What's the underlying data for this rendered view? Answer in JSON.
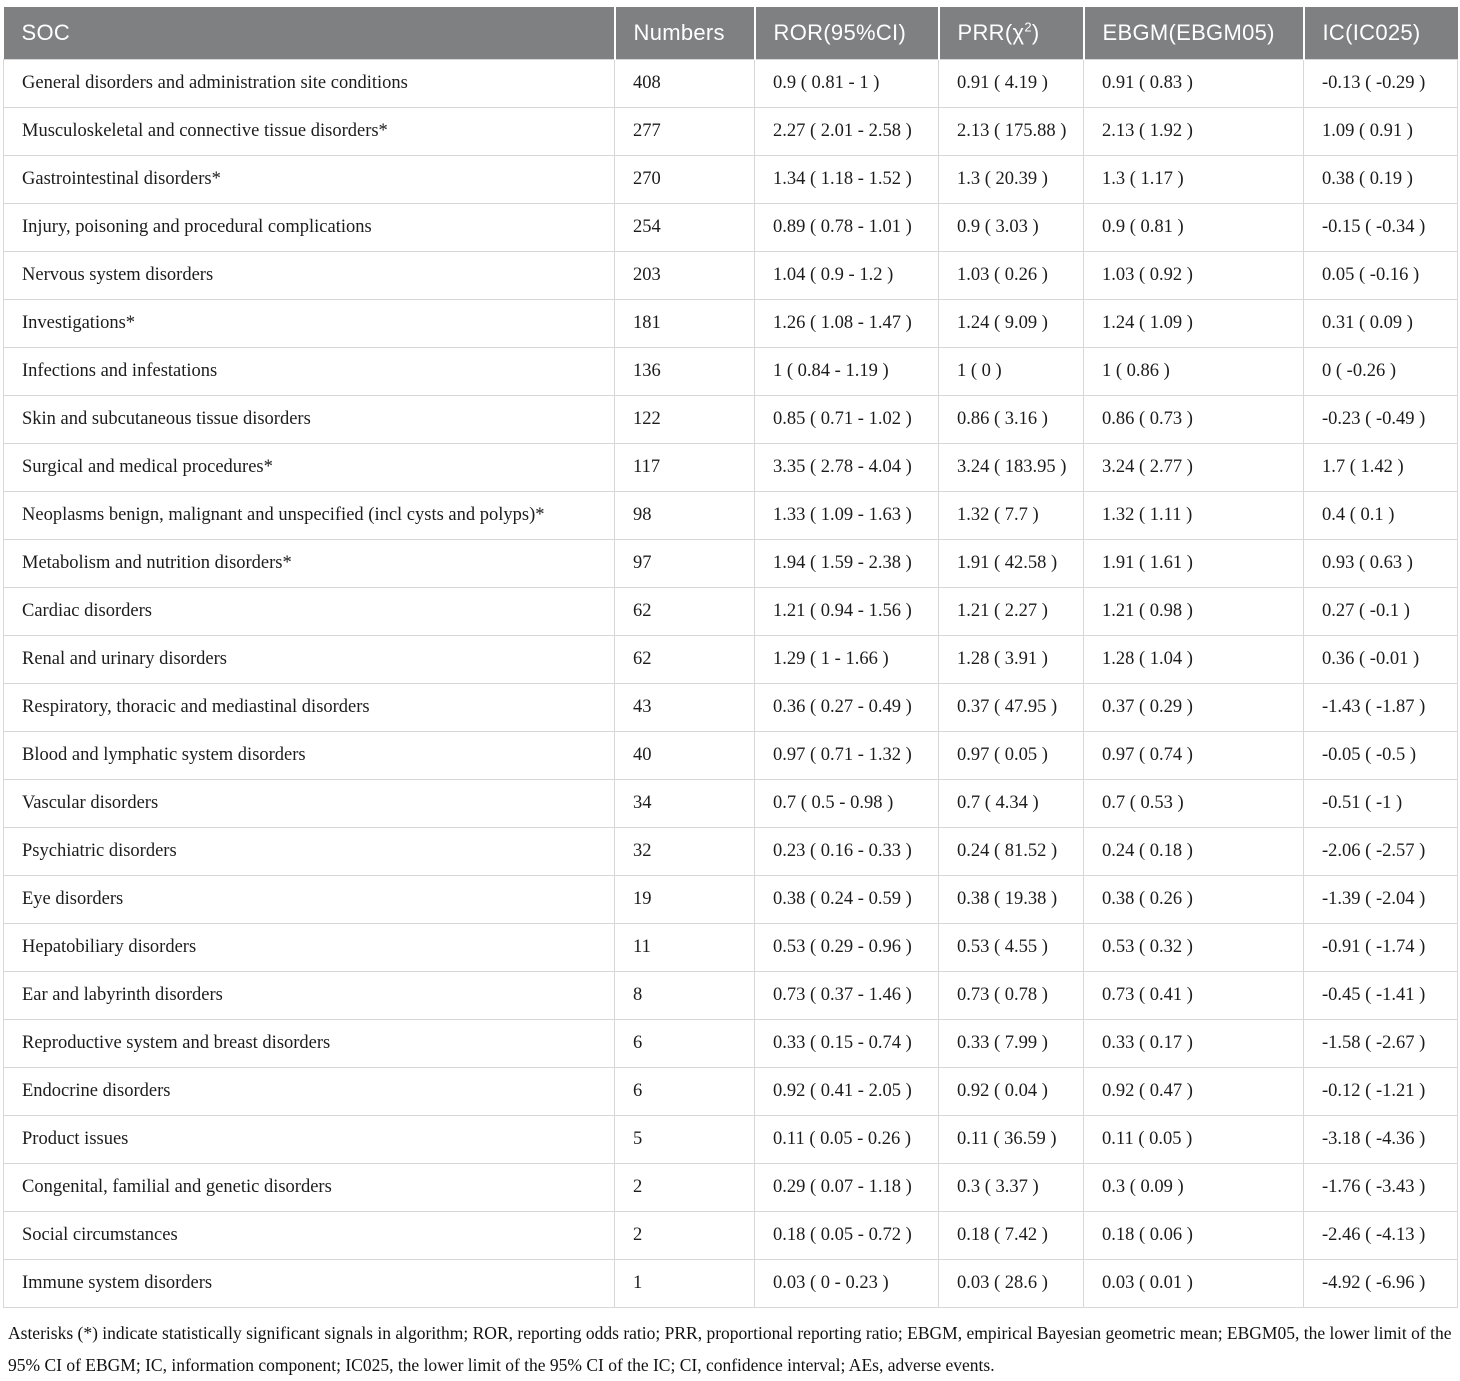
{
  "colors": {
    "header_bg": "#7e8081",
    "header_text": "#ffffff",
    "row_border": "#d7d7d7",
    "body_text": "#1c1c1c"
  },
  "table": {
    "columns": [
      {
        "key": "soc",
        "label": "SOC"
      },
      {
        "key": "numbers",
        "label": "Numbers"
      },
      {
        "key": "ror",
        "label": "ROR(95%CI)"
      },
      {
        "key": "prr",
        "label_pre": "PRR(χ",
        "label_sup": "2",
        "label_post": ")"
      },
      {
        "key": "ebgm",
        "label": "EBGM(EBGM05)"
      },
      {
        "key": "ic",
        "label": "IC(IC025)"
      }
    ],
    "rows": [
      {
        "soc": "General disorders and administration site conditions",
        "numbers": "408",
        "ror": "0.9 ( 0.81 - 1 )",
        "prr": "0.91 ( 4.19 )",
        "ebgm": "0.91 ( 0.83 )",
        "ic": "-0.13 ( -0.29 )"
      },
      {
        "soc": "Musculoskeletal and connective tissue disorders*",
        "numbers": "277",
        "ror": "2.27 ( 2.01 - 2.58 )",
        "prr": "2.13 ( 175.88 )",
        "ebgm": "2.13 ( 1.92 )",
        "ic": "1.09 ( 0.91 )"
      },
      {
        "soc": "Gastrointestinal disorders*",
        "numbers": "270",
        "ror": "1.34 ( 1.18 - 1.52 )",
        "prr": "1.3 ( 20.39 )",
        "ebgm": "1.3 ( 1.17 )",
        "ic": "0.38 ( 0.19 )"
      },
      {
        "soc": "Injury, poisoning and procedural complications",
        "numbers": "254",
        "ror": "0.89 ( 0.78 - 1.01 )",
        "prr": "0.9 ( 3.03 )",
        "ebgm": "0.9 ( 0.81 )",
        "ic": "-0.15 ( -0.34 )"
      },
      {
        "soc": "Nervous system disorders",
        "numbers": "203",
        "ror": "1.04 ( 0.9 - 1.2 )",
        "prr": "1.03 ( 0.26 )",
        "ebgm": "1.03 ( 0.92 )",
        "ic": "0.05 ( -0.16 )"
      },
      {
        "soc": "Investigations*",
        "numbers": "181",
        "ror": "1.26 ( 1.08 - 1.47 )",
        "prr": "1.24 ( 9.09 )",
        "ebgm": "1.24 ( 1.09 )",
        "ic": "0.31 ( 0.09 )"
      },
      {
        "soc": "Infections and infestations",
        "numbers": "136",
        "ror": "1 ( 0.84 - 1.19 )",
        "prr": "1 ( 0 )",
        "ebgm": "1 ( 0.86 )",
        "ic": "0 ( -0.26 )"
      },
      {
        "soc": "Skin and subcutaneous tissue disorders",
        "numbers": "122",
        "ror": "0.85 ( 0.71 - 1.02 )",
        "prr": "0.86 ( 3.16 )",
        "ebgm": "0.86 ( 0.73 )",
        "ic": "-0.23 ( -0.49 )"
      },
      {
        "soc": "Surgical and medical procedures*",
        "numbers": "117",
        "ror": "3.35 ( 2.78 - 4.04 )",
        "prr": "3.24 ( 183.95 )",
        "ebgm": "3.24 ( 2.77 )",
        "ic": "1.7 ( 1.42 )"
      },
      {
        "soc": "Neoplasms benign, malignant and unspecified (incl cysts and polyps)*",
        "numbers": "98",
        "ror": "1.33 ( 1.09 - 1.63 )",
        "prr": "1.32 ( 7.7 )",
        "ebgm": "1.32 ( 1.11 )",
        "ic": "0.4 ( 0.1 )"
      },
      {
        "soc": "Metabolism and nutrition disorders*",
        "numbers": "97",
        "ror": "1.94 ( 1.59 - 2.38 )",
        "prr": "1.91 ( 42.58 )",
        "ebgm": "1.91 ( 1.61 )",
        "ic": "0.93 ( 0.63 )"
      },
      {
        "soc": "Cardiac disorders",
        "numbers": "62",
        "ror": "1.21 ( 0.94 - 1.56 )",
        "prr": "1.21 ( 2.27 )",
        "ebgm": "1.21 ( 0.98 )",
        "ic": "0.27 ( -0.1 )"
      },
      {
        "soc": "Renal and urinary disorders",
        "numbers": "62",
        "ror": "1.29 ( 1 - 1.66 )",
        "prr": "1.28 ( 3.91 )",
        "ebgm": "1.28 ( 1.04 )",
        "ic": "0.36 ( -0.01 )"
      },
      {
        "soc": "Respiratory, thoracic and mediastinal disorders",
        "numbers": "43",
        "ror": "0.36 ( 0.27 - 0.49 )",
        "prr": "0.37 ( 47.95 )",
        "ebgm": "0.37 ( 0.29 )",
        "ic": "-1.43 ( -1.87 )"
      },
      {
        "soc": "Blood and lymphatic system disorders",
        "numbers": "40",
        "ror": "0.97 ( 0.71 - 1.32 )",
        "prr": "0.97 ( 0.05 )",
        "ebgm": "0.97 ( 0.74 )",
        "ic": "-0.05 ( -0.5 )"
      },
      {
        "soc": "Vascular disorders",
        "numbers": "34",
        "ror": "0.7 ( 0.5 - 0.98 )",
        "prr": "0.7 ( 4.34 )",
        "ebgm": "0.7 ( 0.53 )",
        "ic": "-0.51 ( -1 )"
      },
      {
        "soc": "Psychiatric disorders",
        "numbers": "32",
        "ror": "0.23 ( 0.16 - 0.33 )",
        "prr": "0.24 ( 81.52 )",
        "ebgm": "0.24 ( 0.18 )",
        "ic": "-2.06 ( -2.57 )"
      },
      {
        "soc": "Eye disorders",
        "numbers": "19",
        "ror": "0.38 ( 0.24 - 0.59 )",
        "prr": "0.38 ( 19.38 )",
        "ebgm": "0.38 ( 0.26 )",
        "ic": "-1.39 ( -2.04 )"
      },
      {
        "soc": "Hepatobiliary disorders",
        "numbers": "11",
        "ror": "0.53 ( 0.29 - 0.96 )",
        "prr": "0.53 ( 4.55 )",
        "ebgm": "0.53 ( 0.32 )",
        "ic": "-0.91 ( -1.74 )"
      },
      {
        "soc": "Ear and labyrinth disorders",
        "numbers": "8",
        "ror": "0.73 ( 0.37 - 1.46 )",
        "prr": "0.73 ( 0.78 )",
        "ebgm": "0.73 ( 0.41 )",
        "ic": "-0.45 ( -1.41 )"
      },
      {
        "soc": "Reproductive system and breast disorders",
        "numbers": "6",
        "ror": "0.33 ( 0.15 - 0.74 )",
        "prr": "0.33 ( 7.99 )",
        "ebgm": "0.33 ( 0.17 )",
        "ic": "-1.58 ( -2.67 )"
      },
      {
        "soc": "Endocrine disorders",
        "numbers": "6",
        "ror": "0.92 ( 0.41 - 2.05 )",
        "prr": "0.92 ( 0.04 )",
        "ebgm": "0.92 ( 0.47 )",
        "ic": "-0.12 ( -1.21 )"
      },
      {
        "soc": "Product issues",
        "numbers": "5",
        "ror": "0.11 ( 0.05 - 0.26 )",
        "prr": "0.11 ( 36.59 )",
        "ebgm": "0.11 ( 0.05 )",
        "ic": "-3.18 ( -4.36 )"
      },
      {
        "soc": "Congenital, familial and genetic disorders",
        "numbers": "2",
        "ror": "0.29 ( 0.07 - 1.18 )",
        "prr": "0.3 ( 3.37 )",
        "ebgm": "0.3 ( 0.09 )",
        "ic": "-1.76 ( -3.43 )"
      },
      {
        "soc": "Social circumstances",
        "numbers": "2",
        "ror": "0.18 ( 0.05 - 0.72 )",
        "prr": "0.18 ( 7.42 )",
        "ebgm": "0.18 ( 0.06 )",
        "ic": "-2.46 ( -4.13 )"
      },
      {
        "soc": "Immune system disorders",
        "numbers": "1",
        "ror": "0.03 ( 0 - 0.23 )",
        "prr": "0.03 ( 28.6 )",
        "ebgm": "0.03 ( 0.01 )",
        "ic": "-4.92 ( -6.96 )"
      }
    ]
  },
  "footnote": "Asterisks (*) indicate statistically significant signals in algorithm; ROR, reporting odds ratio; PRR, proportional reporting ratio; EBGM, empirical Bayesian geometric mean; EBGM05, the lower limit of the 95% CI of EBGM; IC, information component; IC025, the lower limit of the 95% CI of the IC; CI, confidence interval; AEs, adverse events."
}
